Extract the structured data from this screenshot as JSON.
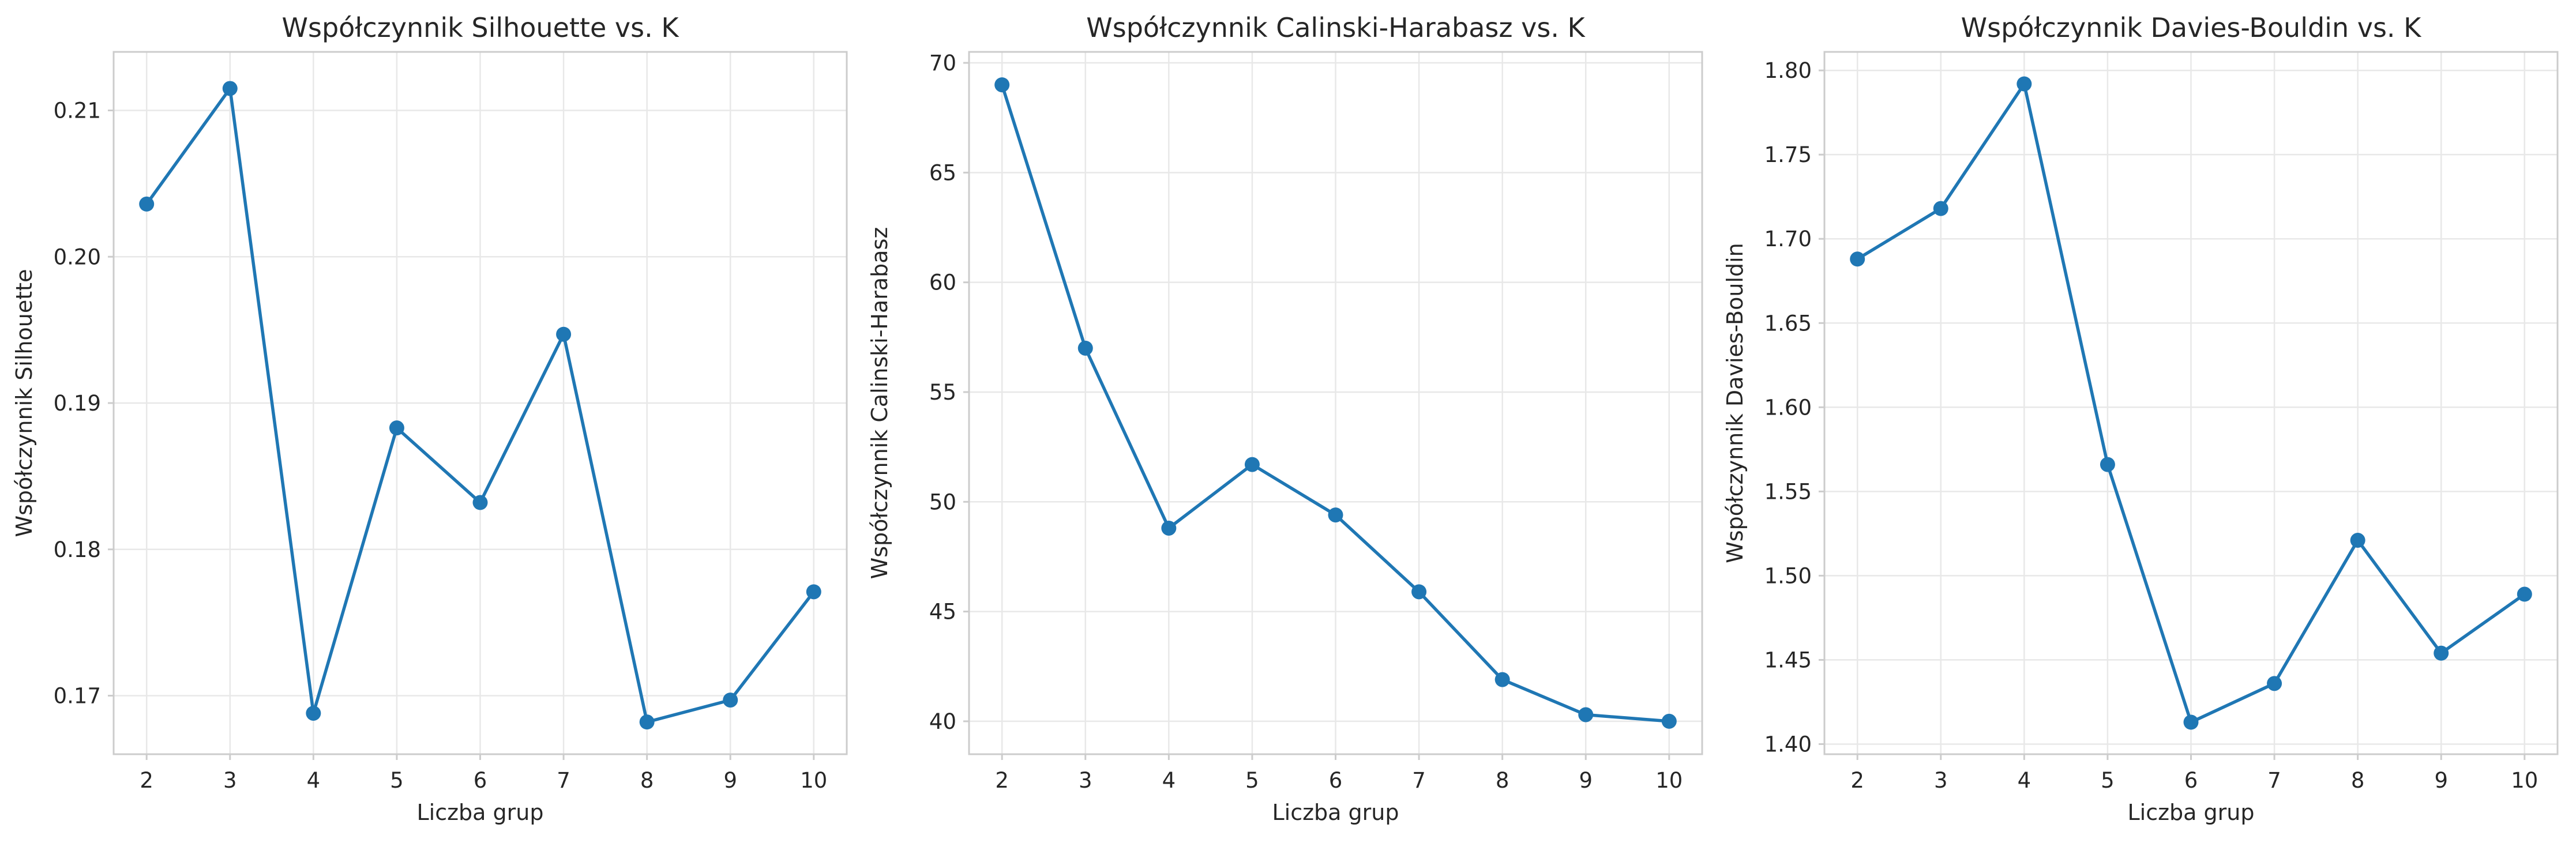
{
  "colors": {
    "series": "#1f77b4"
  },
  "chart_data": [
    {
      "type": "line",
      "title": "Współczynnik Silhouette vs. K",
      "xlabel": "Liczba grup",
      "ylabel": "Współczynnik Silhouette",
      "x": [
        2,
        3,
        4,
        5,
        6,
        7,
        8,
        9,
        10
      ],
      "xticks": [
        "2",
        "3",
        "4",
        "5",
        "6",
        "7",
        "8",
        "9",
        "10"
      ],
      "series": [
        {
          "values": [
            0.2036,
            0.2115,
            0.1688,
            0.1883,
            0.1832,
            0.1947,
            0.1682,
            0.1697,
            0.1771
          ]
        }
      ],
      "ylim": [
        0.166,
        0.214
      ],
      "yticks": [
        "0.17",
        "0.18",
        "0.19",
        "0.20",
        "0.21"
      ],
      "marker": "circle",
      "grid": true
    },
    {
      "type": "line",
      "title": "Współczynnik Calinski-Harabasz vs. K",
      "xlabel": "Liczba grup",
      "ylabel": "Współczynnik Calinski-Harabasz",
      "x": [
        2,
        3,
        4,
        5,
        6,
        7,
        8,
        9,
        10
      ],
      "xticks": [
        "2",
        "3",
        "4",
        "5",
        "6",
        "7",
        "8",
        "9",
        "10"
      ],
      "series": [
        {
          "values": [
            69.0,
            57.0,
            48.8,
            51.7,
            49.4,
            45.9,
            41.9,
            40.3,
            40.0
          ]
        }
      ],
      "ylim": [
        38.5,
        70.5
      ],
      "yticks": [
        "40",
        "45",
        "50",
        "55",
        "60",
        "65",
        "70"
      ],
      "marker": "circle",
      "grid": true
    },
    {
      "type": "line",
      "title": "Współczynnik Davies-Bouldin vs. K",
      "xlabel": "Liczba grup",
      "ylabel": "Współczynnik Davies-Bouldin",
      "x": [
        2,
        3,
        4,
        5,
        6,
        7,
        8,
        9,
        10
      ],
      "xticks": [
        "2",
        "3",
        "4",
        "5",
        "6",
        "7",
        "8",
        "9",
        "10"
      ],
      "series": [
        {
          "values": [
            1.688,
            1.718,
            1.792,
            1.566,
            1.413,
            1.436,
            1.521,
            1.454,
            1.489
          ]
        }
      ],
      "ylim": [
        1.394,
        1.811
      ],
      "yticks": [
        "1.40",
        "1.45",
        "1.50",
        "1.55",
        "1.60",
        "1.65",
        "1.70",
        "1.75",
        "1.80"
      ],
      "marker": "circle",
      "grid": true
    }
  ]
}
